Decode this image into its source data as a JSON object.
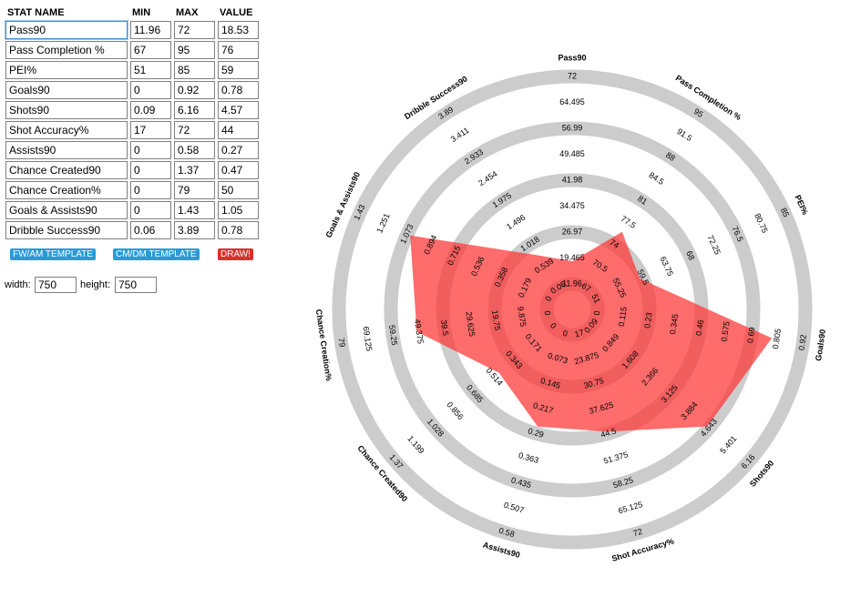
{
  "headers": {
    "name": "STAT NAME",
    "min": "MIN",
    "max": "MAX",
    "value": "VALUE"
  },
  "stats": [
    {
      "name": "Pass90",
      "min": "11.96",
      "max": "72",
      "value": "18.53"
    },
    {
      "name": "Pass Completion %",
      "min": "67",
      "max": "95",
      "value": "76"
    },
    {
      "name": "PEI%",
      "min": "51",
      "max": "85",
      "value": "59"
    },
    {
      "name": "Goals90",
      "min": "0",
      "max": "0.92",
      "value": "0.78"
    },
    {
      "name": "Shots90",
      "min": "0.09",
      "max": "6.16",
      "value": "4.57"
    },
    {
      "name": "Shot Accuracy%",
      "min": "17",
      "max": "72",
      "value": "44"
    },
    {
      "name": "Assists90",
      "min": "0",
      "max": "0.58",
      "value": "0.27"
    },
    {
      "name": "Chance Created90",
      "min": "0",
      "max": "1.37",
      "value": "0.47"
    },
    {
      "name": "Chance Creation%",
      "min": "0",
      "max": "79",
      "value": "50"
    },
    {
      "name": "Goals & Assists90",
      "min": "0",
      "max": "1.43",
      "value": "1.05"
    },
    {
      "name": "Dribble Success90",
      "min": "0.06",
      "max": "3.89",
      "value": "0.78"
    }
  ],
  "buttons": {
    "fw_am": "FW/AM TEMPLATE",
    "cm_dm": "CM/DM TEMPLATE",
    "draw": "DRAW!"
  },
  "size": {
    "width_label": "width:",
    "width_value": "750",
    "height_label": "height:",
    "height_value": "750"
  },
  "colors": {
    "ring": "#cccccc",
    "polygon": "#ff3333",
    "accent_blue": "#2a9bd7",
    "accent_red": "#d9302c"
  },
  "chart_data": {
    "type": "radar",
    "axes": [
      "Pass90",
      "Pass Completion %",
      "PEI%",
      "Goals90",
      "Shots90",
      "Shot Accuracy%",
      "Assists90",
      "Chance Created90",
      "Chance Creation%",
      "Goals & Assists90",
      "Dribble Success90"
    ],
    "min": [
      11.96,
      67,
      51,
      0,
      0.09,
      17,
      0,
      0,
      0,
      0,
      0.06
    ],
    "max": [
      72,
      95,
      85,
      0.92,
      6.16,
      72,
      0.58,
      1.37,
      79,
      1.43,
      3.89
    ],
    "values": [
      18.53,
      76,
      59,
      0.78,
      4.57,
      44,
      0.27,
      0.47,
      50,
      1.05,
      0.78
    ],
    "tick_labels": [
      [
        "11.96",
        "19.465",
        "26.97",
        "34.475",
        "41.98",
        "49.485",
        "56.99",
        "64.495",
        "72"
      ],
      [
        "67",
        "70.5",
        "74",
        "77.5",
        "81",
        "84.5",
        "88",
        "91.5",
        "95"
      ],
      [
        "51",
        "55.25",
        "59.5",
        "63.75",
        "68",
        "72.25",
        "76.5",
        "80.75",
        "85"
      ],
      [
        "0",
        "0.115",
        "0.23",
        "0.345",
        "0.46",
        "0.575",
        "0.69",
        "0.805",
        "0.92"
      ],
      [
        "0.09",
        "0.849",
        "1.608",
        "2.366",
        "3.125",
        "3.884",
        "4.643",
        "5.401",
        "6.16"
      ],
      [
        "17",
        "23.875",
        "30.75",
        "37.625",
        "44.5",
        "51.375",
        "58.25",
        "65.125",
        "72"
      ],
      [
        "0",
        "0.073",
        "0.145",
        "0.217",
        "0.29",
        "0.363",
        "0.435",
        "0.507",
        "0.58"
      ],
      [
        "0",
        "0.171",
        "0.343",
        "0.514",
        "0.685",
        "0.856",
        "1.028",
        "1.199",
        "1.37"
      ],
      [
        "0",
        "9.875",
        "19.75",
        "29.625",
        "39.5",
        "49.375",
        "59.25",
        "69.125",
        "79"
      ],
      [
        "0",
        "0.179",
        "0.358",
        "0.536",
        "0.715",
        "0.894",
        "1.073",
        "1.251",
        "1.43"
      ],
      [
        "0.06",
        "0.539",
        "1.018",
        "1.496",
        "1.975",
        "2.454",
        "2.933",
        "3.411",
        "3.89"
      ]
    ]
  }
}
